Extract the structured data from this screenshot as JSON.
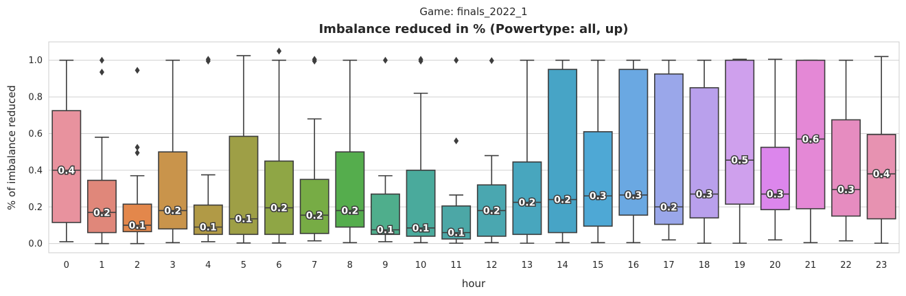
{
  "chart_data": {
    "type": "box",
    "suptitle": "Game: finals_2022_1",
    "title": "Imbalance reduced in % (Powertype: all, up)",
    "xlabel": "hour",
    "ylabel": "% of imbalance reduced",
    "ylim": [
      -0.05,
      1.1
    ],
    "yticks": [
      "0.0",
      "0.2",
      "0.4",
      "0.6",
      "0.8",
      "1.0"
    ],
    "grid": "horizontal",
    "colors": {
      "edge": "#3d3d3d",
      "grid": "#d0d0d0",
      "frame": "#cccccc",
      "boxes": [
        "#e8929e",
        "#e0877a",
        "#e3874b",
        "#c9944b",
        "#b19a46",
        "#9e9f46",
        "#8fa645",
        "#77ac45",
        "#55ad4d",
        "#4fae8c",
        "#4aaa9c",
        "#4ca7a6",
        "#4aa7b0",
        "#48a6be",
        "#47a4c6",
        "#4ea8d5",
        "#6aa8e2",
        "#9aa7ea",
        "#b9a0ec",
        "#cfa0ed",
        "#dc86ec",
        "#e488d6",
        "#e68cc0",
        "#e792b1"
      ]
    },
    "boxes": [
      {
        "hour": "0",
        "min": 0.01,
        "q1": 0.115,
        "median": 0.4,
        "q3": 0.725,
        "max": 1.0,
        "label": "0.4",
        "outliers": []
      },
      {
        "hour": "1",
        "min": 0.0,
        "q1": 0.06,
        "median": 0.17,
        "q3": 0.345,
        "max": 0.58,
        "label": "0.2",
        "outliers": [
          0.935,
          1.0
        ]
      },
      {
        "hour": "2",
        "min": 0.0,
        "q1": 0.065,
        "median": 0.1,
        "q3": 0.215,
        "max": 0.37,
        "label": "0.1",
        "outliers": [
          0.495,
          0.525,
          0.945
        ]
      },
      {
        "hour": "3",
        "min": 0.005,
        "q1": 0.08,
        "median": 0.18,
        "q3": 0.5,
        "max": 1.0,
        "label": "0.2",
        "outliers": []
      },
      {
        "hour": "4",
        "min": 0.01,
        "q1": 0.05,
        "median": 0.09,
        "q3": 0.21,
        "max": 0.375,
        "label": "0.1",
        "outliers": [
          0.995,
          1.005
        ]
      },
      {
        "hour": "5",
        "min": 0.003,
        "q1": 0.05,
        "median": 0.135,
        "q3": 0.585,
        "max": 1.025,
        "label": "0.1",
        "outliers": []
      },
      {
        "hour": "6",
        "min": 0.003,
        "q1": 0.05,
        "median": 0.195,
        "q3": 0.45,
        "max": 1.0,
        "label": "0.2",
        "outliers": [
          1.05
        ]
      },
      {
        "hour": "7",
        "min": 0.015,
        "q1": 0.055,
        "median": 0.155,
        "q3": 0.35,
        "max": 0.68,
        "label": "0.2",
        "outliers": [
          0.995,
          1.005
        ]
      },
      {
        "hour": "8",
        "min": 0.005,
        "q1": 0.09,
        "median": 0.18,
        "q3": 0.5,
        "max": 1.0,
        "label": "0.2",
        "outliers": []
      },
      {
        "hour": "9",
        "min": 0.01,
        "q1": 0.05,
        "median": 0.075,
        "q3": 0.27,
        "max": 0.37,
        "label": "0.1",
        "outliers": [
          1.0
        ]
      },
      {
        "hour": "10",
        "min": 0.005,
        "q1": 0.04,
        "median": 0.085,
        "q3": 0.4,
        "max": 0.82,
        "label": "0.1",
        "outliers": [
          0.995,
          1.005
        ]
      },
      {
        "hour": "11",
        "min": 0.002,
        "q1": 0.025,
        "median": 0.06,
        "q3": 0.205,
        "max": 0.265,
        "label": "0.1",
        "outliers": [
          0.56,
          1.0
        ]
      },
      {
        "hour": "12",
        "min": 0.005,
        "q1": 0.04,
        "median": 0.18,
        "q3": 0.32,
        "max": 0.48,
        "label": "0.2",
        "outliers": [
          0.998
        ]
      },
      {
        "hour": "13",
        "min": 0.002,
        "q1": 0.05,
        "median": 0.225,
        "q3": 0.445,
        "max": 1.0,
        "label": "0.2",
        "outliers": []
      },
      {
        "hour": "14",
        "min": 0.005,
        "q1": 0.06,
        "median": 0.24,
        "q3": 0.95,
        "max": 1.0,
        "label": "0.2",
        "outliers": []
      },
      {
        "hour": "15",
        "min": 0.005,
        "q1": 0.095,
        "median": 0.26,
        "q3": 0.61,
        "max": 1.0,
        "label": "0.3",
        "outliers": []
      },
      {
        "hour": "16",
        "min": 0.005,
        "q1": 0.155,
        "median": 0.265,
        "q3": 0.95,
        "max": 1.0,
        "label": "0.3",
        "outliers": []
      },
      {
        "hour": "17",
        "min": 0.02,
        "q1": 0.105,
        "median": 0.2,
        "q3": 0.925,
        "max": 1.0,
        "label": "0.2",
        "outliers": []
      },
      {
        "hour": "18",
        "min": 0.002,
        "q1": 0.14,
        "median": 0.27,
        "q3": 0.85,
        "max": 1.0,
        "label": "0.3",
        "outliers": []
      },
      {
        "hour": "19",
        "min": 0.002,
        "q1": 0.215,
        "median": 0.455,
        "q3": 1.0,
        "max": 1.005,
        "label": "0.5",
        "outliers": []
      },
      {
        "hour": "20",
        "min": 0.02,
        "q1": 0.185,
        "median": 0.27,
        "q3": 0.525,
        "max": 1.005,
        "label": "0.3",
        "outliers": []
      },
      {
        "hour": "21",
        "min": 0.005,
        "q1": 0.19,
        "median": 0.57,
        "q3": 1.0,
        "max": 1.0,
        "label": "0.6",
        "outliers": []
      },
      {
        "hour": "22",
        "min": 0.015,
        "q1": 0.15,
        "median": 0.295,
        "q3": 0.675,
        "max": 1.0,
        "label": "0.3",
        "outliers": []
      },
      {
        "hour": "23",
        "min": 0.002,
        "q1": 0.135,
        "median": 0.38,
        "q3": 0.595,
        "max": 1.02,
        "label": "0.4",
        "outliers": []
      }
    ]
  }
}
